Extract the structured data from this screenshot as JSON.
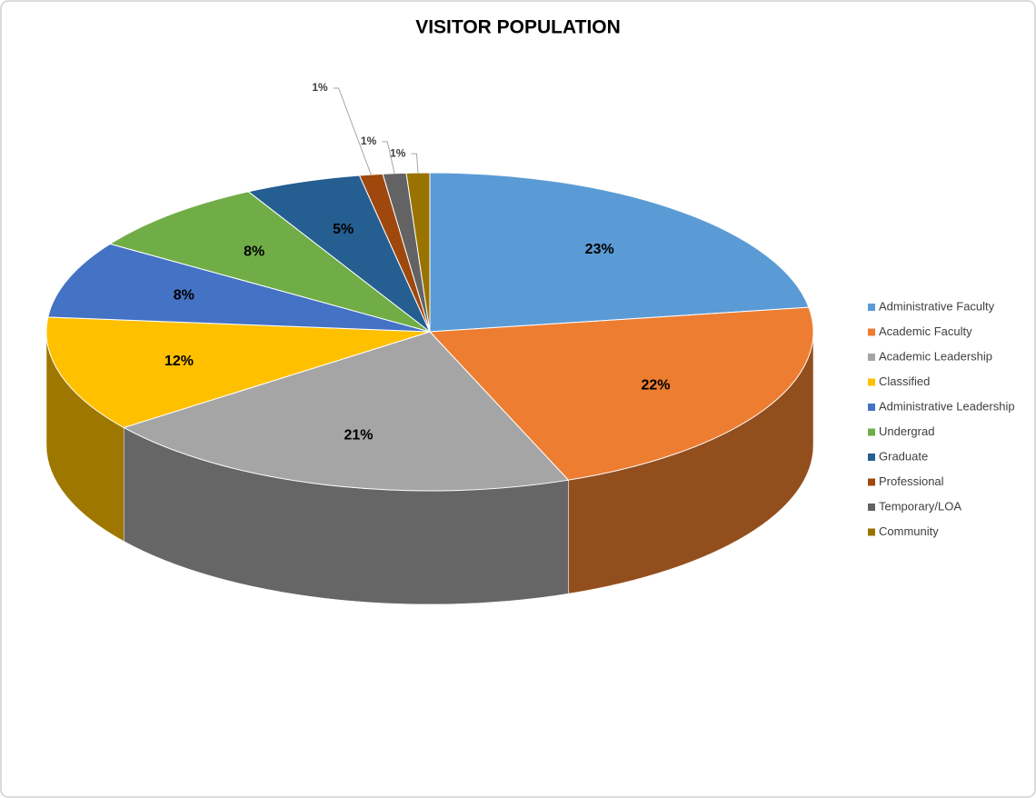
{
  "chart_data": {
    "type": "pie",
    "title": "VISITOR POPULATION",
    "categories": [
      "Administrative Faculty",
      "Academic Faculty",
      "Academic Leadership",
      "Classified",
      "Administrative Leadership",
      "Undergrad",
      "Graduate",
      "Professional",
      "Temporary/LOA",
      "Community"
    ],
    "values": [
      23,
      22,
      21,
      12,
      8,
      8,
      5,
      1,
      1,
      1
    ],
    "value_labels": [
      "23%",
      "22%",
      "21%",
      "12%",
      "8%",
      "8%",
      "5%",
      "1%",
      "1%",
      "1%"
    ],
    "colors": [
      "#5b9bd5",
      "#ed7d31",
      "#a5a5a5",
      "#ffc000",
      "#4472c4",
      "#70ad47",
      "#255e91",
      "#9e480e",
      "#636363",
      "#997300"
    ],
    "legend": "right"
  }
}
